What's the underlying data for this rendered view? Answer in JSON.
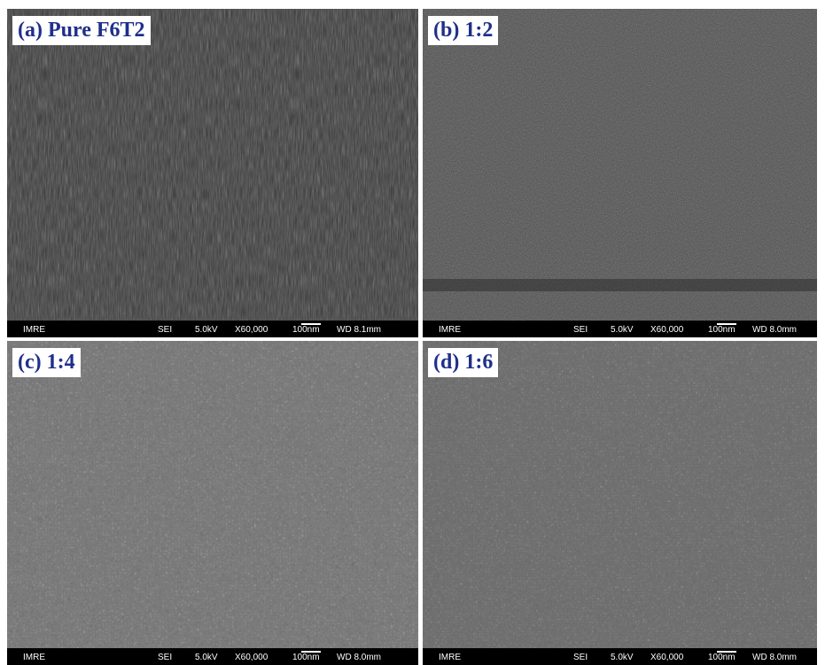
{
  "panels": [
    {
      "label": "(a) Pure F6T2",
      "info": [
        "IMRE",
        "SEI",
        "5.0kV",
        "X60,000",
        "100nm",
        "WD 8.1mm"
      ]
    },
    {
      "label": "(b) 1:2",
      "info": [
        "IMRE",
        "SEI",
        "5.0kV",
        "X60,000",
        "100nm",
        "WD 8.0mm"
      ]
    },
    {
      "label": "(c) 1:4",
      "info": [
        "IMRE",
        "SEI",
        "5.0kV",
        "X60,000",
        "100nm",
        "WD 8.0mm"
      ]
    },
    {
      "label": "(d) 1:6",
      "info": [
        "IMRE",
        "SEI",
        "5.0kV",
        "X60,000",
        "100nm",
        "WD 8.0mm"
      ]
    }
  ]
}
